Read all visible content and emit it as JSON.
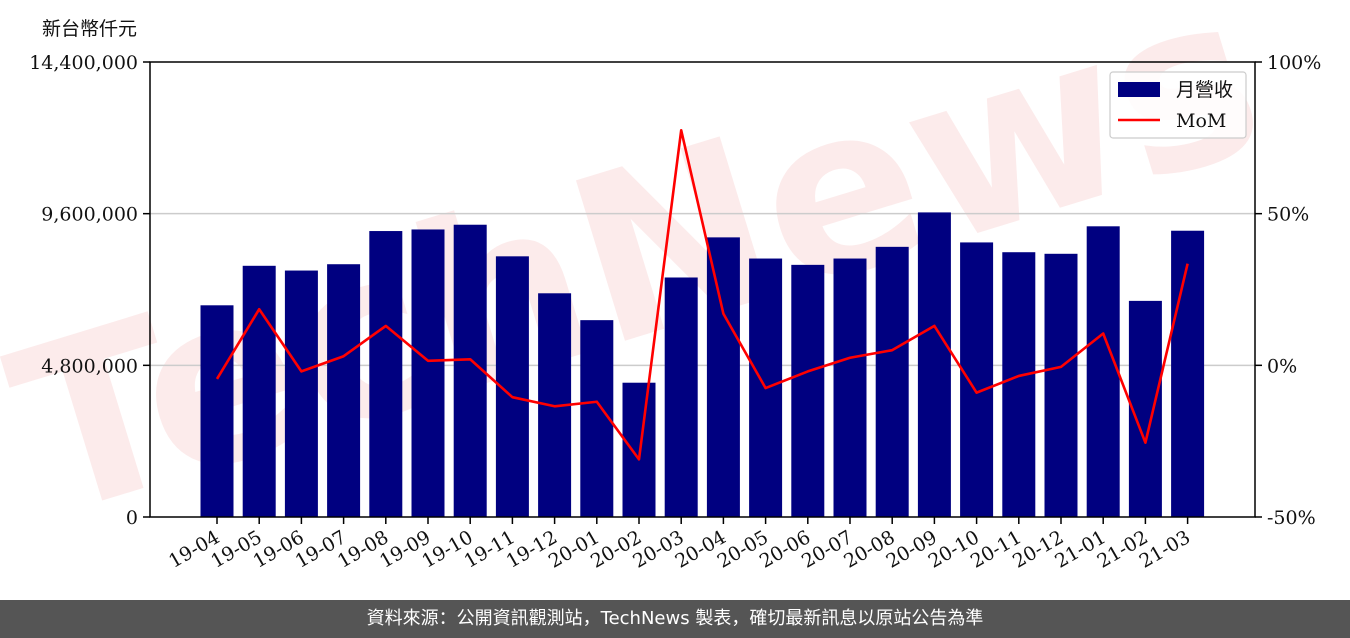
{
  "chart_data": {
    "type": "bar",
    "unit_label": "新台幣仟元",
    "categories": [
      "19-04",
      "19-05",
      "19-06",
      "19-07",
      "19-08",
      "19-09",
      "19-10",
      "19-11",
      "19-12",
      "20-01",
      "20-02",
      "20-03",
      "20-04",
      "20-05",
      "20-06",
      "20-07",
      "20-08",
      "20-09",
      "20-10",
      "20-11",
      "20-12",
      "21-01",
      "21-02",
      "21-03"
    ],
    "series": [
      {
        "name": "月營收",
        "axis": "left",
        "color": "#000080",
        "values": [
          6700000,
          7950000,
          7800000,
          8000000,
          9050000,
          9100000,
          9250000,
          8250000,
          7080000,
          6230000,
          4250000,
          7580000,
          8850000,
          8180000,
          7980000,
          8180000,
          8550000,
          9640000,
          8690000,
          8380000,
          8330000,
          9200000,
          6840000,
          9060000
        ]
      },
      {
        "name": "MoM",
        "axis": "right",
        "color": "#ff0000",
        "values": [
          -4.5,
          18.5,
          -2,
          3,
          13,
          1.5,
          2,
          -10.5,
          -13.5,
          -12,
          -31,
          77.5,
          17,
          -7.5,
          -2,
          2.5,
          5,
          13,
          -9,
          -3.5,
          -0.5,
          10.5,
          -25.5,
          33.5
        ]
      }
    ],
    "y_left": {
      "min": 0,
      "max": 14400000,
      "ticks": [
        0,
        4800000,
        9600000,
        14400000
      ],
      "tick_labels": [
        "0",
        "4,800,000",
        "9,600,000",
        "14,400,000"
      ]
    },
    "y_right": {
      "min": -50,
      "max": 100,
      "ticks": [
        -50,
        0,
        50,
        100
      ],
      "tick_labels": [
        "-50%",
        "0%",
        "50%",
        "100%"
      ]
    },
    "grid": true,
    "legend_position": "top-right",
    "watermark": "TechNews"
  },
  "footer": {
    "text": "資料來源：公開資訊觀測站，TechNews 製表，確切最新訊息以原站公告為準"
  }
}
